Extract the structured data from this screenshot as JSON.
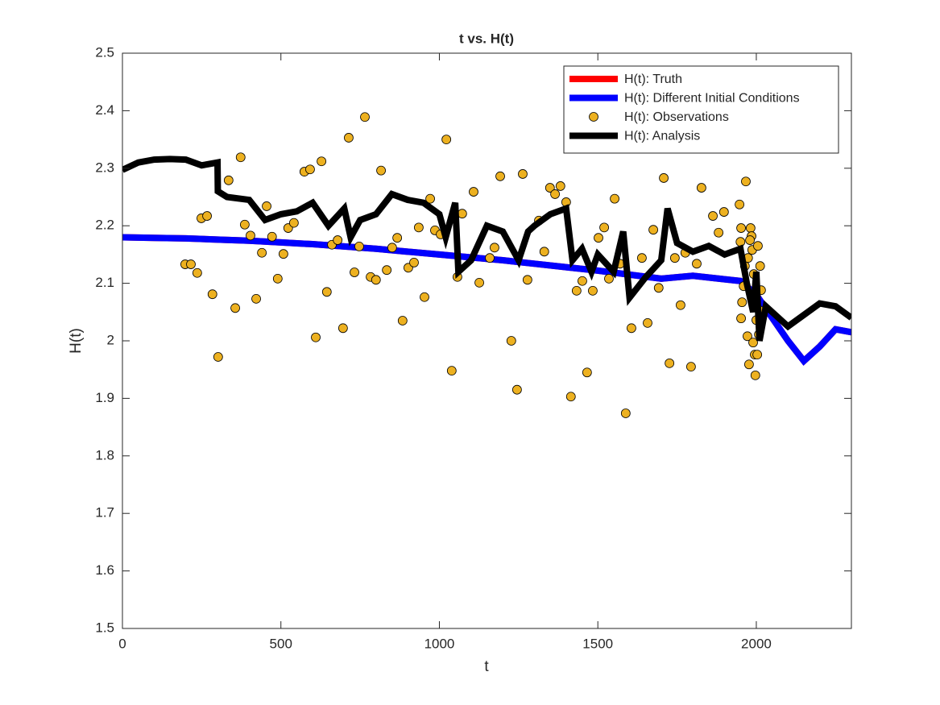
{
  "chart_data": {
    "type": "line",
    "title": "t vs. H(t)",
    "x_label": "t",
    "y_label": "H(t)",
    "xlim": [
      0,
      2300
    ],
    "xticks": [
      0,
      500,
      1000,
      1500,
      2000
    ],
    "ylim": [
      1.5,
      2.5
    ],
    "yticks": [
      1.5,
      1.6,
      1.7,
      1.8,
      1.9,
      2,
      2.1,
      2.2,
      2.3,
      2.4,
      2.5
    ],
    "legend": "top-right",
    "series": [
      {
        "name": "H(t): Truth",
        "type": "line",
        "color": "#ff0000",
        "x": [
          0,
          100,
          200,
          300,
          400,
          500,
          600,
          700,
          800,
          900,
          1000,
          1100,
          1200,
          1300,
          1400,
          1500,
          1600,
          1700,
          1800,
          1900,
          1950,
          2000,
          2050,
          2100,
          2150,
          2200,
          2250,
          2300
        ],
        "values": [
          2.18,
          2.179,
          2.178,
          2.176,
          2.174,
          2.171,
          2.168,
          2.164,
          2.16,
          2.155,
          2.15,
          2.145,
          2.14,
          2.134,
          2.128,
          2.122,
          2.115,
          2.108,
          2.113,
          2.107,
          2.104,
          2.08,
          2.04,
          2.0,
          1.965,
          1.99,
          2.02,
          2.015
        ]
      },
      {
        "name": "H(t): Different Initial Conditions",
        "type": "line",
        "color": "#0000ff",
        "x": [
          0,
          100,
          200,
          300,
          400,
          500,
          600,
          700,
          800,
          900,
          1000,
          1100,
          1200,
          1300,
          1400,
          1500,
          1600,
          1700,
          1800,
          1900,
          1950,
          2000,
          2050,
          2100,
          2150,
          2200,
          2250,
          2300
        ],
        "values": [
          2.18,
          2.179,
          2.178,
          2.176,
          2.174,
          2.171,
          2.168,
          2.164,
          2.16,
          2.155,
          2.15,
          2.145,
          2.14,
          2.134,
          2.128,
          2.122,
          2.115,
          2.108,
          2.113,
          2.107,
          2.104,
          2.08,
          2.04,
          2.0,
          1.965,
          1.99,
          2.02,
          2.015
        ]
      },
      {
        "name": "H(t): Observations",
        "type": "scatter",
        "color": "#edb120",
        "x": [
          198,
          216,
          236,
          249,
          267,
          284,
          302,
          335,
          356,
          373,
          386,
          404,
          422,
          440,
          455,
          472,
          490,
          508,
          523,
          541,
          574,
          592,
          610,
          628,
          645,
          661,
          679,
          696,
          714,
          732,
          747,
          765,
          783,
          800,
          816,
          834,
          851,
          867,
          884,
          902,
          920,
          935,
          953,
          971,
          986,
          1004,
          1022,
          1039,
          1057,
          1072,
          1108,
          1126,
          1159,
          1174,
          1192,
          1227,
          1245,
          1263,
          1278,
          1314,
          1331,
          1349,
          1365,
          1382,
          1400,
          1415,
          1433,
          1451,
          1466,
          1484,
          1502,
          1520,
          1535,
          1553,
          1570,
          1588,
          1606,
          1639,
          1657,
          1675,
          1692,
          1708,
          1726,
          1743,
          1761,
          1776,
          1794,
          1812,
          1827,
          1863,
          1881,
          1898,
          1947,
          1967,
          1952,
          1950,
          1952,
          1955,
          1960,
          1964,
          1972,
          1977,
          1982,
          1985,
          1987,
          1990,
          1992,
          1995,
          2000,
          1997,
          2003,
          2005,
          2008,
          2010,
          2012,
          2015,
          1974,
          1980
        ],
        "values": [
          2.133,
          2.133,
          2.118,
          2.213,
          2.217,
          2.081,
          1.972,
          2.279,
          2.057,
          2.319,
          2.202,
          2.183,
          2.073,
          2.153,
          2.234,
          2.181,
          2.108,
          2.151,
          2.196,
          2.205,
          2.294,
          2.298,
          2.006,
          2.312,
          2.085,
          2.167,
          2.175,
          2.022,
          2.353,
          2.119,
          2.164,
          2.389,
          2.111,
          2.106,
          2.296,
          2.123,
          2.162,
          2.179,
          2.035,
          2.127,
          2.136,
          2.197,
          2.076,
          2.247,
          2.192,
          2.185,
          2.35,
          1.948,
          2.111,
          2.221,
          2.259,
          2.101,
          2.144,
          2.162,
          2.286,
          2.0,
          1.915,
          2.29,
          2.106,
          2.209,
          2.155,
          2.266,
          2.255,
          2.269,
          2.241,
          1.903,
          2.087,
          2.104,
          1.945,
          2.087,
          2.179,
          2.197,
          2.108,
          2.247,
          2.134,
          1.874,
          2.022,
          2.144,
          2.031,
          2.193,
          2.092,
          2.283,
          1.961,
          2.144,
          2.062,
          2.153,
          1.955,
          2.134,
          2.266,
          2.217,
          2.188,
          2.224,
          2.237,
          2.277,
          2.196,
          2.172,
          2.039,
          2.067,
          2.095,
          2.13,
          2.008,
          1.959,
          2.196,
          2.182,
          2.158,
          1.997,
          2.116,
          1.976,
          2.036,
          1.94,
          1.976,
          2.165,
          2.011,
          2.053,
          2.13,
          2.088,
          2.144,
          2.175
        ]
      },
      {
        "name": "H(t): Analysis",
        "type": "line",
        "color": "#000000",
        "x": [
          0,
          50,
          100,
          150,
          200,
          250,
          300,
          301,
          330,
          400,
          450,
          500,
          550,
          600,
          650,
          700,
          720,
          750,
          800,
          850,
          900,
          950,
          1000,
          1020,
          1050,
          1060,
          1100,
          1150,
          1200,
          1250,
          1280,
          1300,
          1350,
          1400,
          1420,
          1450,
          1480,
          1500,
          1550,
          1580,
          1600,
          1650,
          1700,
          1720,
          1750,
          1800,
          1850,
          1900,
          1950,
          1970,
          1990,
          2000,
          2010,
          2030,
          2100,
          2150,
          2200,
          2250,
          2300
        ],
        "values": [
          2.297,
          2.31,
          2.315,
          2.316,
          2.315,
          2.305,
          2.31,
          2.26,
          2.25,
          2.245,
          2.21,
          2.22,
          2.225,
          2.24,
          2.2,
          2.23,
          2.18,
          2.21,
          2.22,
          2.255,
          2.245,
          2.24,
          2.22,
          2.18,
          2.24,
          2.12,
          2.14,
          2.2,
          2.19,
          2.14,
          2.19,
          2.2,
          2.22,
          2.23,
          2.14,
          2.16,
          2.12,
          2.15,
          2.12,
          2.19,
          2.075,
          2.11,
          2.14,
          2.23,
          2.17,
          2.155,
          2.165,
          2.15,
          2.16,
          2.1,
          2.05,
          2.12,
          2.0,
          2.06,
          2.025,
          2.045,
          2.065,
          2.06,
          2.04
        ]
      }
    ]
  }
}
